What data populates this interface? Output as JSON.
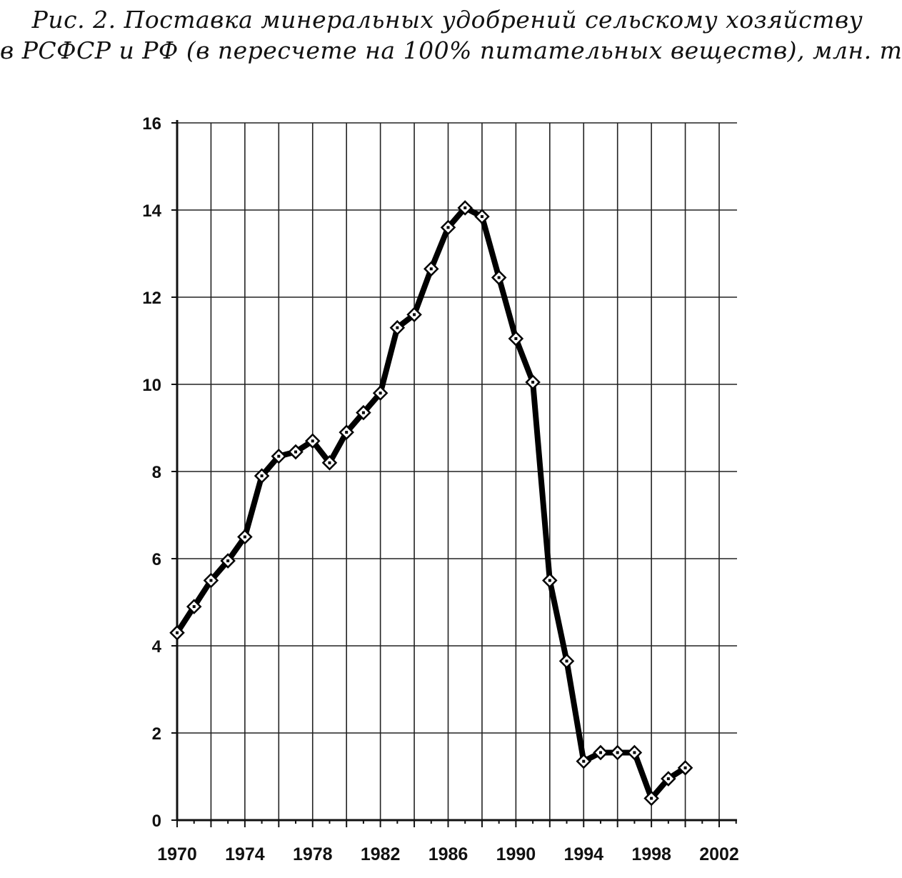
{
  "chart_data": {
    "type": "line",
    "title_lines": [
      "Рис. 2. Поставка минеральных удобрений сельскому хозяйству",
      "в РСФСР и РФ (в пересчете на 100% питательных веществ), млн. т"
    ],
    "xlabel": "",
    "ylabel": "",
    "xlim": [
      1970,
      2003
    ],
    "ylim": [
      0,
      16
    ],
    "x_ticks": [
      1970,
      1974,
      1978,
      1982,
      1986,
      1990,
      1994,
      1998,
      2002
    ],
    "y_ticks": [
      0,
      2,
      4,
      6,
      8,
      10,
      12,
      14,
      16
    ],
    "grid": true,
    "legend": "none",
    "series": [
      {
        "color": "#000000",
        "marker": "diamond",
        "x": [
          1970,
          1971,
          1972,
          1973,
          1974,
          1975,
          1976,
          1977,
          1978,
          1979,
          1980,
          1981,
          1982,
          1983,
          1984,
          1985,
          1986,
          1987,
          1988,
          1989,
          1990,
          1991,
          1992,
          1993,
          1994,
          1995,
          1996,
          1997,
          1998,
          1999,
          2000
        ],
        "y": [
          4.3,
          4.9,
          5.5,
          5.95,
          6.5,
          7.9,
          8.35,
          8.45,
          8.7,
          8.2,
          8.9,
          9.35,
          9.8,
          11.3,
          11.6,
          12.65,
          13.6,
          14.05,
          13.85,
          12.45,
          11.05,
          10.05,
          5.5,
          3.65,
          1.35,
          1.55,
          1.55,
          1.55,
          0.5,
          0.95,
          1.2
        ]
      }
    ]
  }
}
